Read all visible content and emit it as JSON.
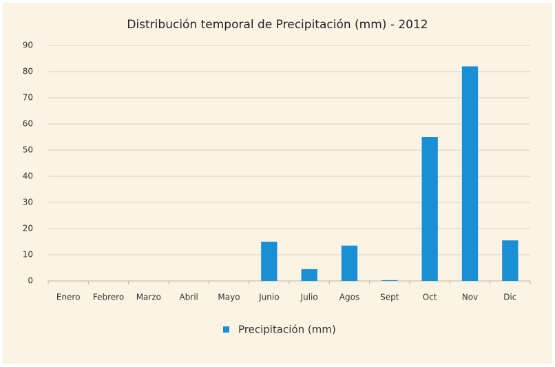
{
  "chart_data": {
    "type": "bar",
    "title": "Distribución temporal de Precipitación (mm) - 2012",
    "categories": [
      "Enero",
      "Febrero",
      "Marzo",
      "Abril",
      "Mayo",
      "Junio",
      "Julio",
      "Agos",
      "Sept",
      "Oct",
      "Nov",
      "Dic"
    ],
    "series": [
      {
        "name": "Precipitación (mm)",
        "color": "#1a8fd6",
        "values": [
          0,
          0,
          0,
          0,
          0,
          15,
          4.5,
          13.5,
          0.3,
          55,
          82,
          15.5
        ]
      }
    ],
    "ylim": [
      0,
      90
    ],
    "yticks": [
      0,
      10,
      20,
      30,
      40,
      50,
      60,
      70,
      80,
      90
    ],
    "grid": true,
    "legend": "bottom"
  }
}
